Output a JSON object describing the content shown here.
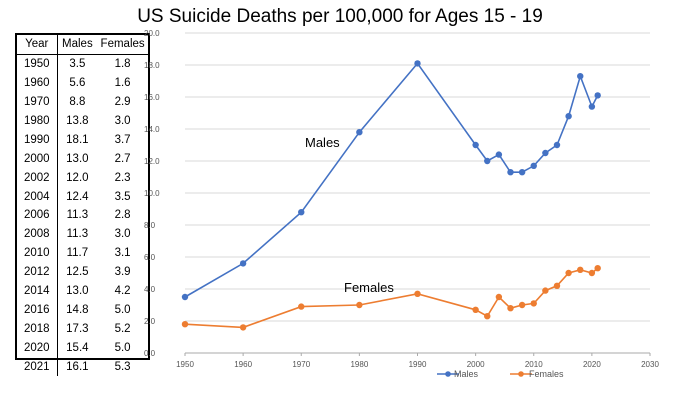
{
  "title": "US Suicide Deaths per 100,000 for Ages 15 - 19",
  "table": {
    "headers": [
      "Year",
      "Males",
      "Females"
    ],
    "rows": [
      [
        "1950",
        "3.5",
        "1.8"
      ],
      [
        "1960",
        "5.6",
        "1.6"
      ],
      [
        "1970",
        "8.8",
        "2.9"
      ],
      [
        "1980",
        "13.8",
        "3.0"
      ],
      [
        "1990",
        "18.1",
        "3.7"
      ],
      [
        "2000",
        "13.0",
        "2.7"
      ],
      [
        "2002",
        "12.0",
        "2.3"
      ],
      [
        "2004",
        "12.4",
        "3.5"
      ],
      [
        "2006",
        "11.3",
        "2.8"
      ],
      [
        "2008",
        "11.3",
        "3.0"
      ],
      [
        "2010",
        "11.7",
        "3.1"
      ],
      [
        "2012",
        "12.5",
        "3.9"
      ],
      [
        "2014",
        "13.0",
        "4.2"
      ],
      [
        "2016",
        "14.8",
        "5.0"
      ],
      [
        "2018",
        "17.3",
        "5.2"
      ],
      [
        "2020",
        "15.4",
        "5.0"
      ],
      [
        "2021",
        "16.1",
        "5.3"
      ]
    ]
  },
  "chart_data": {
    "type": "line",
    "title": "US Suicide Deaths per 100,000 for Ages 15 - 19",
    "x": [
      1950,
      1960,
      1970,
      1980,
      1990,
      2000,
      2002,
      2004,
      2006,
      2008,
      2010,
      2012,
      2014,
      2016,
      2018,
      2020,
      2021
    ],
    "series": [
      {
        "name": "Males",
        "color": "#4472c4",
        "values": [
          3.5,
          5.6,
          8.8,
          13.8,
          18.1,
          13.0,
          12.0,
          12.4,
          11.3,
          11.3,
          11.7,
          12.5,
          13.0,
          14.8,
          17.3,
          15.4,
          16.1
        ]
      },
      {
        "name": "Females",
        "color": "#ed7d31",
        "values": [
          1.8,
          1.6,
          2.9,
          3.0,
          3.7,
          2.7,
          2.3,
          3.5,
          2.8,
          3.0,
          3.1,
          3.9,
          4.2,
          5.0,
          5.2,
          5.0,
          5.3
        ]
      }
    ],
    "xlim": [
      1950,
      2030
    ],
    "ylim": [
      0,
      20
    ],
    "xticks": [
      "1950",
      "1960",
      "1970",
      "1980",
      "1990",
      "2000",
      "2010",
      "2020",
      "2030"
    ],
    "yticks": [
      "0.0",
      "2.0",
      "4.0",
      "6.0",
      "8.0",
      "10.0",
      "12.0",
      "14.0",
      "16.0",
      "18.0",
      "20.0"
    ],
    "annotations": [
      "Males",
      "Females"
    ],
    "grid": true,
    "legend": "bottom-right"
  }
}
